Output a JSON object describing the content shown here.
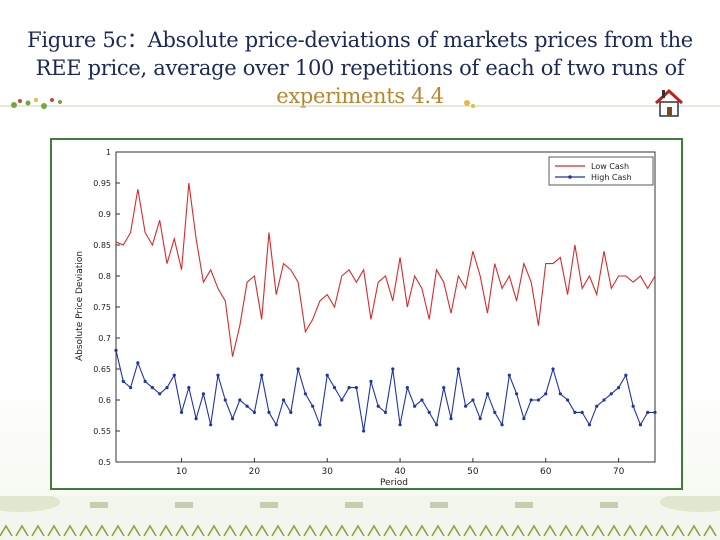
{
  "slide": {
    "title_part1": "Figure 5c：Absolute price-deviations of markets  prices from the REE price, average over 100 repetitions of each of two runs of ",
    "title_part2": "experiments 4.4",
    "icons": [
      "flower-decoration-icon",
      "home-icon",
      "grass-border-icon"
    ]
  },
  "chart_data": {
    "type": "line",
    "title": "",
    "xlabel": "Period",
    "ylabel": "Absolute Price Deviation",
    "xlim": [
      1,
      75
    ],
    "ylim": [
      0.5,
      1.0
    ],
    "xticks": [
      10,
      20,
      30,
      40,
      50,
      60,
      70
    ],
    "yticks": [
      0.5,
      0.55,
      0.6,
      0.65,
      0.7,
      0.75,
      0.8,
      0.85,
      0.9,
      0.95,
      1
    ],
    "ytick_labels": [
      "0.5",
      "0.55",
      "0.6",
      "0.65",
      "0.7",
      "0.75",
      "0.8",
      "0.85",
      "0.9",
      "0.95",
      "1"
    ],
    "grid": true,
    "legend_position": "top-right",
    "x": [
      1,
      2,
      3,
      4,
      5,
      6,
      7,
      8,
      9,
      10,
      11,
      12,
      13,
      14,
      15,
      16,
      17,
      18,
      19,
      20,
      21,
      22,
      23,
      24,
      25,
      26,
      27,
      28,
      29,
      30,
      31,
      32,
      33,
      34,
      35,
      36,
      37,
      38,
      39,
      40,
      41,
      42,
      43,
      44,
      45,
      46,
      47,
      48,
      49,
      50,
      51,
      52,
      53,
      54,
      55,
      56,
      57,
      58,
      59,
      60,
      61,
      62,
      63,
      64,
      65,
      66,
      67,
      68,
      69,
      70,
      71,
      72,
      73,
      74,
      75
    ],
    "series": [
      {
        "name": "Low Cash",
        "color": "#d62b2b",
        "marker": "none",
        "values": [
          0.855,
          0.85,
          0.87,
          0.94,
          0.87,
          0.85,
          0.89,
          0.82,
          0.86,
          0.81,
          0.95,
          0.86,
          0.79,
          0.81,
          0.78,
          0.76,
          0.67,
          0.72,
          0.79,
          0.8,
          0.73,
          0.87,
          0.77,
          0.82,
          0.81,
          0.79,
          0.71,
          0.73,
          0.76,
          0.77,
          0.75,
          0.8,
          0.81,
          0.79,
          0.81,
          0.73,
          0.79,
          0.8,
          0.76,
          0.83,
          0.75,
          0.8,
          0.78,
          0.73,
          0.81,
          0.79,
          0.74,
          0.8,
          0.78,
          0.84,
          0.8,
          0.74,
          0.82,
          0.78,
          0.8,
          0.76,
          0.82,
          0.79,
          0.72,
          0.82,
          0.82,
          0.83,
          0.77,
          0.85,
          0.78,
          0.8,
          0.77,
          0.84,
          0.78,
          0.8,
          0.8,
          0.79,
          0.8,
          0.78,
          0.8
        ]
      },
      {
        "name": "High Cash",
        "color": "#1f35a8",
        "marker": "dot",
        "values": [
          0.68,
          0.63,
          0.62,
          0.66,
          0.63,
          0.62,
          0.61,
          0.62,
          0.64,
          0.58,
          0.62,
          0.57,
          0.61,
          0.56,
          0.64,
          0.6,
          0.57,
          0.6,
          0.59,
          0.58,
          0.64,
          0.58,
          0.56,
          0.6,
          0.58,
          0.65,
          0.61,
          0.59,
          0.56,
          0.64,
          0.62,
          0.6,
          0.62,
          0.62,
          0.55,
          0.63,
          0.59,
          0.58,
          0.65,
          0.56,
          0.62,
          0.59,
          0.6,
          0.58,
          0.56,
          0.62,
          0.57,
          0.65,
          0.59,
          0.6,
          0.57,
          0.61,
          0.58,
          0.56,
          0.64,
          0.61,
          0.57,
          0.6,
          0.6,
          0.61,
          0.65,
          0.61,
          0.6,
          0.58,
          0.58,
          0.56,
          0.59,
          0.6,
          0.61,
          0.62,
          0.64,
          0.59,
          0.56,
          0.58,
          0.58
        ]
      }
    ]
  }
}
